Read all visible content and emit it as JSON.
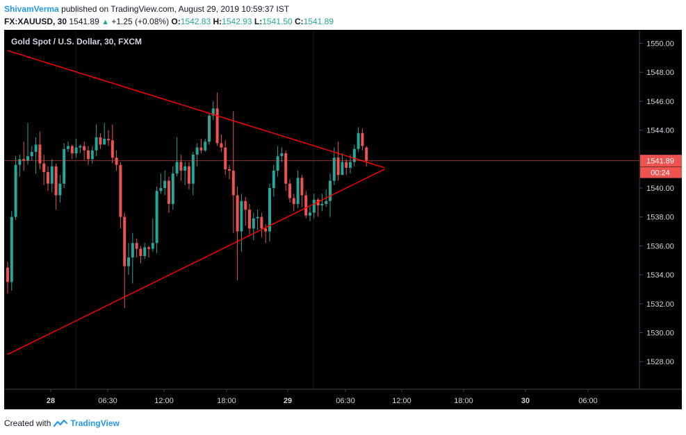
{
  "header": {
    "author": "ShivamVerma",
    "published_text": "published on TradingView.com, August 29, 2019 10:59:37 IST",
    "symbol": "FX:XAUUSD, 30",
    "last": "1541.89",
    "change": "+1.25 (+0.08%)",
    "o_label": "O:",
    "o_value": "1542.83",
    "h_label": "H:",
    "h_value": "1542.93",
    "l_label": "L:",
    "l_value": "1541.50",
    "c_label": "C:",
    "c_value": "1541.89"
  },
  "footer": {
    "created_with": "Created with",
    "brand": "TradingView"
  },
  "colors": {
    "up": "#26a69a",
    "down": "#ef5350",
    "trendline": "#ff0000",
    "background": "#000000"
  },
  "chart_data": {
    "type": "candlestick",
    "title": "Gold Spot / U.S. Dollar, 30, FXCM",
    "ylim": [
      1526,
      1551
    ],
    "y_ticks": [
      "1550.00",
      "1548.00",
      "1546.00",
      "1544.00",
      "1540.00",
      "1538.00",
      "1536.00",
      "1534.00",
      "1532.00",
      "1530.00",
      "1528.00"
    ],
    "x_ticks": [
      "28",
      "06:30",
      "12:00",
      "18:00",
      "29",
      "06:30",
      "12:00",
      "18:00",
      "30",
      "06:00"
    ],
    "last_price_label": "1541.89",
    "countdown_label": "00:24",
    "last_price": 1541.89,
    "candles": [
      [
        1534.5,
        1533.5,
        1534.9,
        1532.7
      ],
      [
        1533.5,
        1538.0,
        1538.4,
        1532.9
      ],
      [
        1538.0,
        1541.6,
        1542.2,
        1537.8
      ],
      [
        1541.6,
        1542.0,
        1542.3,
        1540.8
      ],
      [
        1542.0,
        1541.9,
        1543.2,
        1541.2
      ],
      [
        1541.9,
        1542.2,
        1544.5,
        1541.6
      ],
      [
        1542.2,
        1542.5,
        1542.9,
        1541.9
      ],
      [
        1542.5,
        1543.0,
        1543.5,
        1541.0
      ],
      [
        1543.0,
        1541.7,
        1543.9,
        1541.3
      ],
      [
        1541.7,
        1541.1,
        1542.3,
        1540.2
      ],
      [
        1541.1,
        1540.3,
        1541.5,
        1539.8
      ],
      [
        1540.3,
        1541.5,
        1542.0,
        1539.7
      ],
      [
        1541.5,
        1539.5,
        1541.7,
        1538.5
      ],
      [
        1539.5,
        1540.3,
        1540.9,
        1539.0
      ],
      [
        1540.3,
        1542.7,
        1543.1,
        1540.0
      ],
      [
        1542.7,
        1542.9,
        1543.2,
        1542.5
      ],
      [
        1542.9,
        1542.4,
        1543.0,
        1542.0
      ],
      [
        1542.4,
        1542.8,
        1543.4,
        1542.1
      ],
      [
        1542.8,
        1542.9,
        1543.0,
        1542.4
      ],
      [
        1542.9,
        1542.6,
        1543.2,
        1541.9
      ],
      [
        1542.6,
        1542.0,
        1542.9,
        1541.6
      ],
      [
        1542.0,
        1542.6,
        1542.9,
        1541.7
      ],
      [
        1542.6,
        1543.5,
        1544.4,
        1542.2
      ],
      [
        1543.5,
        1543.0,
        1543.8,
        1542.7
      ],
      [
        1543.0,
        1543.4,
        1544.5,
        1543.0
      ],
      [
        1543.4,
        1543.3,
        1544.0,
        1542.9
      ],
      [
        1543.3,
        1542.1,
        1544.4,
        1541.7
      ],
      [
        1542.1,
        1541.6,
        1542.6,
        1541.2
      ],
      [
        1541.6,
        1538.0,
        1541.8,
        1537.2
      ],
      [
        1538.0,
        1534.6,
        1538.3,
        1531.7
      ],
      [
        1534.6,
        1535.2,
        1536.2,
        1534.0
      ],
      [
        1535.2,
        1536.2,
        1536.9,
        1533.4
      ],
      [
        1536.2,
        1535.8,
        1536.5,
        1535.2
      ],
      [
        1535.8,
        1535.3,
        1536.0,
        1534.8
      ],
      [
        1535.3,
        1535.9,
        1536.2,
        1535.1
      ],
      [
        1535.9,
        1535.8,
        1536.0,
        1535.2
      ],
      [
        1535.8,
        1536.2,
        1537.9,
        1535.6
      ],
      [
        1536.2,
        1539.8,
        1540.1,
        1535.5
      ],
      [
        1539.8,
        1540.0,
        1541.0,
        1539.6
      ],
      [
        1540.0,
        1540.5,
        1541.2,
        1539.5
      ],
      [
        1540.5,
        1538.9,
        1540.8,
        1538.3
      ],
      [
        1538.9,
        1541.0,
        1541.5,
        1538.5
      ],
      [
        1541.0,
        1541.8,
        1543.5,
        1540.8
      ],
      [
        1541.8,
        1541.2,
        1542.3,
        1540.5
      ],
      [
        1541.2,
        1541.5,
        1541.8,
        1540.2
      ],
      [
        1541.5,
        1540.3,
        1541.8,
        1539.9
      ],
      [
        1540.3,
        1542.3,
        1542.5,
        1539.5
      ],
      [
        1542.3,
        1542.8,
        1543.1,
        1541.5
      ],
      [
        1542.8,
        1542.6,
        1543.4,
        1542.4
      ],
      [
        1542.6,
        1543.2,
        1543.4,
        1542.5
      ],
      [
        1543.2,
        1545.0,
        1545.2,
        1543.0
      ],
      [
        1545.0,
        1545.5,
        1546.0,
        1544.7
      ],
      [
        1545.5,
        1543.1,
        1546.6,
        1542.9
      ],
      [
        1543.1,
        1542.8,
        1543.7,
        1542.5
      ],
      [
        1542.8,
        1541.3,
        1543.3,
        1540.9
      ],
      [
        1541.3,
        1541.2,
        1541.6,
        1540.6
      ],
      [
        1541.2,
        1539.5,
        1545.3,
        1536.9
      ],
      [
        1539.5,
        1537.0,
        1540.1,
        1533.6
      ],
      [
        1537.0,
        1539.1,
        1539.6,
        1535.6
      ],
      [
        1539.1,
        1538.5,
        1539.4,
        1537.4
      ],
      [
        1538.5,
        1537.2,
        1538.9,
        1536.8
      ],
      [
        1537.2,
        1537.9,
        1538.3,
        1536.4
      ],
      [
        1537.9,
        1538.0,
        1538.5,
        1537.1
      ],
      [
        1538.0,
        1537.2,
        1538.3,
        1536.6
      ],
      [
        1537.2,
        1537.0,
        1537.5,
        1536.2
      ],
      [
        1537.0,
        1540.0,
        1540.3,
        1536.3
      ],
      [
        1540.0,
        1541.2,
        1541.6,
        1539.4
      ],
      [
        1541.2,
        1542.2,
        1542.9,
        1540.8
      ],
      [
        1542.2,
        1542.4,
        1542.8,
        1541.8
      ],
      [
        1542.4,
        1540.3,
        1542.6,
        1539.8
      ],
      [
        1540.3,
        1539.3,
        1540.6,
        1539.0
      ],
      [
        1539.3,
        1538.9,
        1539.6,
        1538.4
      ],
      [
        1538.9,
        1540.7,
        1541.2,
        1538.6
      ],
      [
        1540.7,
        1539.5,
        1540.9,
        1538.7
      ],
      [
        1539.5,
        1538.1,
        1539.8,
        1537.9
      ],
      [
        1538.1,
        1538.3,
        1538.7,
        1537.7
      ],
      [
        1538.3,
        1539.2,
        1539.6,
        1537.9
      ],
      [
        1539.2,
        1538.8,
        1539.3,
        1538.0
      ],
      [
        1538.8,
        1538.9,
        1539.6,
        1538.4
      ],
      [
        1538.9,
        1539.1,
        1539.9,
        1538.7
      ],
      [
        1539.1,
        1540.5,
        1541.0,
        1538.0
      ],
      [
        1540.5,
        1542.1,
        1542.8,
        1540.2
      ],
      [
        1542.1,
        1540.9,
        1543.2,
        1540.5
      ],
      [
        1540.9,
        1541.8,
        1542.4,
        1541.3
      ],
      [
        1541.8,
        1541.4,
        1542.0,
        1540.9
      ],
      [
        1541.4,
        1541.8,
        1542.3,
        1541.0
      ],
      [
        1541.8,
        1542.7,
        1543.0,
        1541.5
      ],
      [
        1542.7,
        1543.8,
        1544.2,
        1542.5
      ],
      [
        1543.8,
        1542.9,
        1544.1,
        1542.6
      ],
      [
        1542.8,
        1541.9,
        1542.9,
        1541.5
      ]
    ],
    "trendlines": [
      {
        "x0": 0.0,
        "y0": 1549.5,
        "x1": 93.5,
        "y1": 1541.4
      },
      {
        "x0": 0.0,
        "y0": 1528.5,
        "x1": 93.5,
        "y1": 1541.3
      }
    ]
  }
}
